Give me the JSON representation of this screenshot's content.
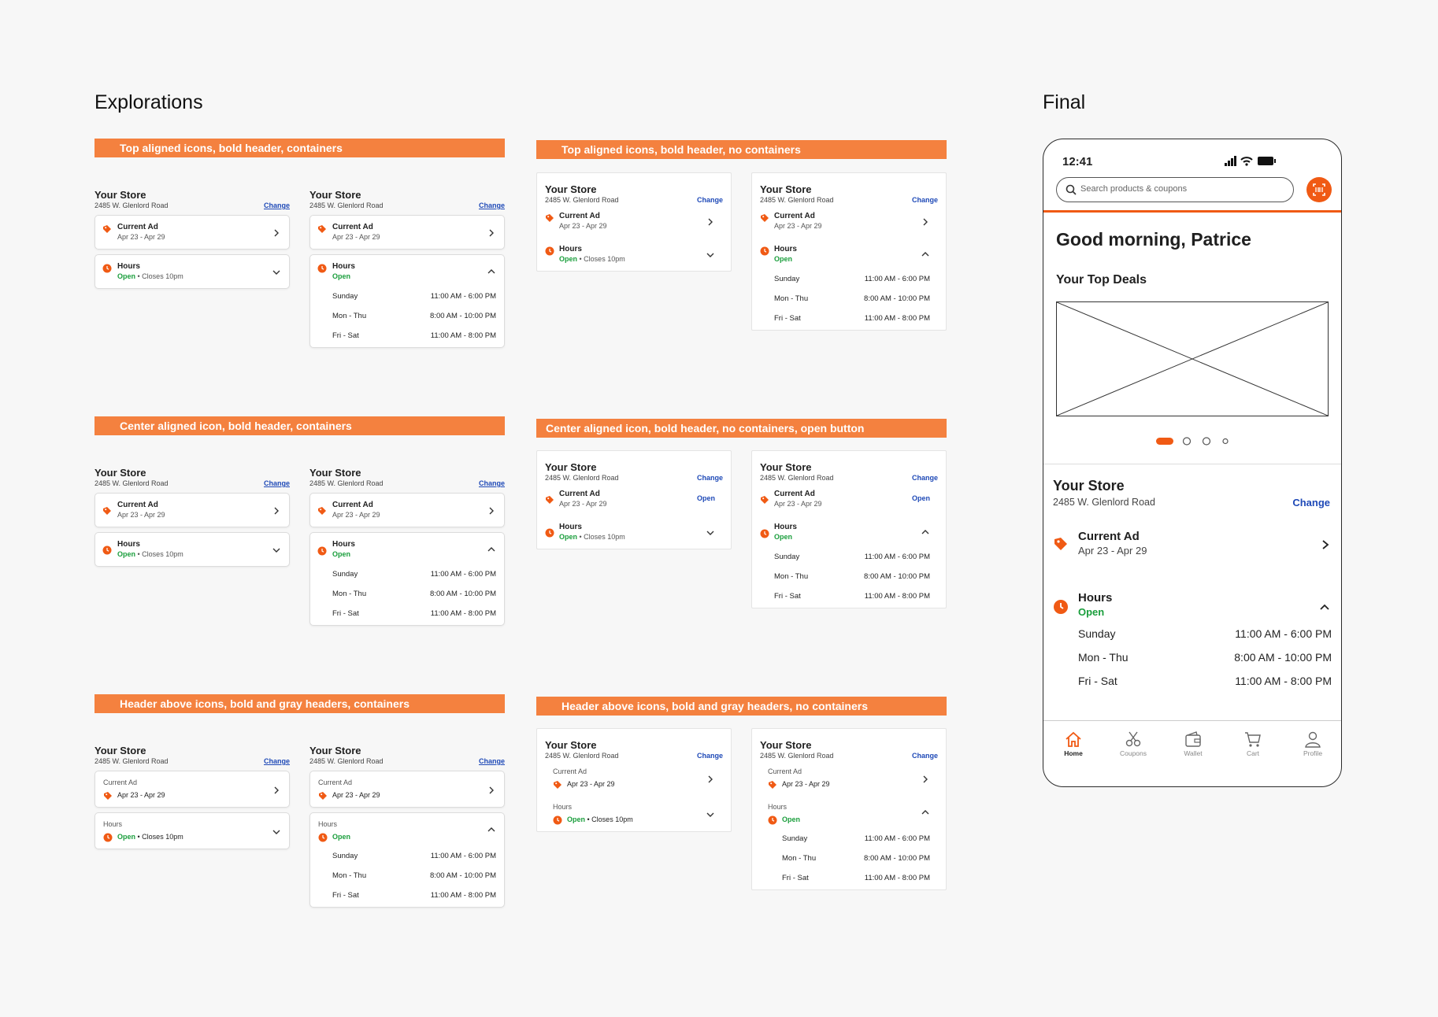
{
  "headings": {
    "explorations": "Explorations",
    "final": "Final"
  },
  "banners": {
    "b1": "Top aligned icons, bold header, containers",
    "b2": "Top aligned icons, bold header, no containers",
    "b3": "Center aligned icon, bold header, containers",
    "b4": "Center aligned icon, bold header, no containers, open button",
    "b5": "Header above icons, bold and gray headers, containers",
    "b6": "Header above icons, bold and gray headers, no containers"
  },
  "store": {
    "title": "Your Store",
    "address": "2485 W. Glenlord Road",
    "change": "Change"
  },
  "ad": {
    "title": "Current Ad",
    "dates": "Apr 23 - Apr 29",
    "open": "Open"
  },
  "hours": {
    "title": "Hours",
    "open": "Open",
    "closes": "• Closes 10pm",
    "rows": [
      {
        "day": "Sunday",
        "time": "11:00 AM - 6:00 PM"
      },
      {
        "day": "Mon - Thu",
        "time": "8:00 AM - 10:00 PM"
      },
      {
        "day": "Fri - Sat",
        "time": "11:00 AM - 8:00 PM"
      }
    ]
  },
  "phone": {
    "time": "12:41",
    "search_placeholder": "Search products & coupons",
    "greeting": "Good morning, Patrice",
    "top_deals": "Your Top Deals",
    "carousel": {
      "pages": 4,
      "active": 0
    },
    "nav": [
      {
        "label": "Home",
        "icon": "home-icon",
        "active": true
      },
      {
        "label": "Coupons",
        "icon": "scissors-icon",
        "active": false
      },
      {
        "label": "Wallet",
        "icon": "wallet-icon",
        "active": false
      },
      {
        "label": "Cart",
        "icon": "cart-icon",
        "active": false
      },
      {
        "label": "Profile",
        "icon": "profile-icon",
        "active": false
      }
    ]
  },
  "colors": {
    "accent": "#f05a14",
    "banner": "#f4813f",
    "link": "#1e49b7",
    "open": "#1a9e3c"
  }
}
